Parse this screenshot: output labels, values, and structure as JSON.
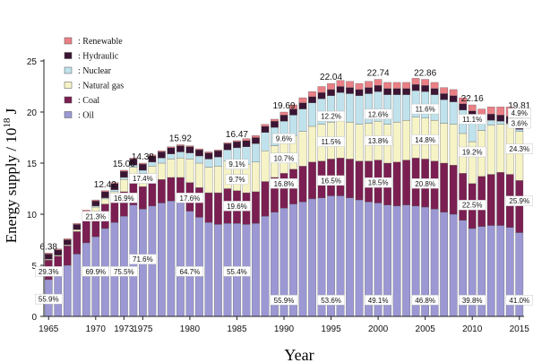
{
  "chart_data": {
    "type": "bar",
    "stacked": true,
    "xlabel": "Year",
    "ylabel": "Energy supply / 10",
    "ylabel_sup": "18",
    "ylabel_unit": " J",
    "ylim": [
      0,
      25
    ],
    "yticks": [
      0,
      5,
      10,
      15,
      20,
      25
    ],
    "xticks": [
      1965,
      1970,
      1973,
      1975,
      1980,
      1985,
      1990,
      1995,
      2000,
      2005,
      2010,
      2015
    ],
    "legend_position": "top-left",
    "series": [
      {
        "name": ": Oil",
        "color": "#9b98d4",
        "values": [
          3.6,
          4.0,
          5.0,
          6.1,
          7.2,
          7.8,
          8.6,
          9.2,
          9.8,
          10.9,
          10.5,
          10.8,
          11.1,
          11.3,
          11.2,
          10.3,
          9.7,
          9.2,
          9.0,
          9.1,
          9.1,
          9.0,
          9.1,
          9.8,
          10.2,
          10.6,
          11.0,
          11.2,
          11.5,
          11.6,
          11.8,
          11.8,
          11.6,
          11.4,
          11.2,
          11.1,
          10.9,
          10.8,
          10.9,
          10.8,
          10.7,
          10.5,
          10.2,
          10.0,
          9.4,
          8.6,
          8.8,
          8.9,
          8.9,
          8.7,
          8.2
        ]
      },
      {
        "name": ": Coal",
        "color": "#7b1f52",
        "values": [
          1.9,
          1.9,
          1.9,
          2.2,
          2.3,
          2.5,
          2.4,
          2.3,
          2.4,
          2.4,
          2.2,
          2.4,
          2.3,
          2.3,
          2.4,
          2.8,
          2.9,
          2.9,
          3.1,
          3.4,
          3.2,
          3.1,
          3.1,
          3.4,
          3.4,
          3.4,
          3.4,
          3.5,
          3.6,
          3.6,
          3.6,
          3.7,
          3.8,
          3.8,
          4.0,
          4.2,
          4.1,
          4.3,
          4.4,
          4.7,
          4.7,
          4.7,
          4.8,
          4.8,
          4.6,
          4.4,
          4.9,
          5.0,
          5.2,
          5.2,
          5.1
        ]
      },
      {
        "name": ": Natural gas",
        "color": "#f6f3c6",
        "values": [
          0.1,
          0.1,
          0.1,
          0.2,
          0.3,
          0.4,
          0.5,
          0.7,
          1.2,
          1.3,
          1.3,
          1.5,
          1.6,
          1.8,
          1.9,
          2.3,
          2.4,
          2.5,
          2.6,
          2.7,
          2.8,
          2.8,
          2.9,
          3.0,
          3.1,
          3.2,
          3.3,
          3.4,
          3.5,
          3.6,
          3.6,
          3.7,
          3.6,
          3.6,
          3.7,
          3.8,
          3.8,
          3.9,
          3.9,
          4.0,
          4.0,
          4.0,
          3.9,
          4.0,
          3.9,
          4.1,
          4.5,
          4.8,
          4.7,
          4.9,
          4.8
        ]
      },
      {
        "name": ": Nuclear",
        "color": "#bfe2ec",
        "values": [
          0.0,
          0.0,
          0.0,
          0.0,
          0.0,
          0.1,
          0.1,
          0.2,
          0.2,
          0.2,
          0.3,
          0.4,
          0.5,
          0.5,
          0.6,
          0.6,
          0.7,
          0.8,
          0.9,
          1.1,
          1.4,
          1.7,
          1.8,
          1.8,
          1.8,
          1.9,
          2.0,
          2.2,
          2.3,
          2.5,
          2.6,
          2.7,
          2.8,
          2.8,
          2.9,
          2.9,
          2.9,
          2.7,
          2.5,
          2.6,
          2.6,
          2.5,
          2.3,
          2.2,
          2.3,
          2.4,
          0.9,
          0.5,
          0.3,
          0.1,
          0.2
        ]
      },
      {
        "name": ": Hydraulic",
        "color": "#3b1533",
        "values": [
          0.5,
          0.5,
          0.5,
          0.5,
          0.5,
          0.5,
          0.6,
          0.6,
          0.6,
          0.6,
          0.6,
          0.6,
          0.6,
          0.6,
          0.6,
          0.6,
          0.6,
          0.6,
          0.6,
          0.6,
          0.6,
          0.6,
          0.6,
          0.6,
          0.6,
          0.6,
          0.6,
          0.6,
          0.6,
          0.6,
          0.6,
          0.6,
          0.6,
          0.6,
          0.6,
          0.6,
          0.6,
          0.6,
          0.6,
          0.6,
          0.6,
          0.6,
          0.6,
          0.6,
          0.6,
          0.6,
          0.6,
          0.6,
          0.6,
          0.7,
          0.7
        ]
      },
      {
        "name": ": Renewable",
        "color": "#ea7f86",
        "values": [
          0.1,
          0.1,
          0.1,
          0.1,
          0.1,
          0.1,
          0.1,
          0.1,
          0.1,
          0.1,
          0.1,
          0.1,
          0.1,
          0.1,
          0.1,
          0.1,
          0.1,
          0.1,
          0.1,
          0.1,
          0.1,
          0.2,
          0.2,
          0.2,
          0.2,
          0.3,
          0.4,
          0.5,
          0.5,
          0.6,
          0.6,
          0.6,
          0.6,
          0.6,
          0.6,
          0.6,
          0.6,
          0.6,
          0.6,
          0.6,
          0.6,
          0.6,
          0.6,
          0.6,
          0.6,
          0.6,
          0.6,
          0.7,
          0.8,
          0.9,
          1.0
        ]
      }
    ],
    "totals": [
      {
        "year": 1965,
        "label": "6.38"
      },
      {
        "year": 1971,
        "label": "12.42"
      },
      {
        "year": 1973,
        "label": "15.00"
      },
      {
        "year": 1975,
        "label": "14.38"
      },
      {
        "year": 1979,
        "label": "15.92"
      },
      {
        "year": 1985,
        "label": "16.47"
      },
      {
        "year": 1990,
        "label": "19.69"
      },
      {
        "year": 1995,
        "label": "22.04"
      },
      {
        "year": 2000,
        "label": "22.74"
      },
      {
        "year": 2005,
        "label": "22.86"
      },
      {
        "year": 2010,
        "label": "22.16"
      },
      {
        "year": 2015,
        "label": "19.81"
      }
    ],
    "annotations": [
      {
        "year": 1965,
        "y": 1.7,
        "text": "55.9%"
      },
      {
        "year": 1965,
        "y": 4.4,
        "text": "29.3%"
      },
      {
        "year": 1970,
        "y": 4.4,
        "text": "69.9%"
      },
      {
        "year": 1970,
        "y": 9.8,
        "text": "21.3%"
      },
      {
        "year": 1973,
        "y": 4.4,
        "text": "75.5%"
      },
      {
        "year": 1973,
        "y": 11.6,
        "text": "16.9%"
      },
      {
        "year": 1975,
        "y": 5.6,
        "text": "71.6%"
      },
      {
        "year": 1975,
        "y": 13.5,
        "text": "17.4%"
      },
      {
        "year": 1980,
        "y": 4.4,
        "text": "64.7%"
      },
      {
        "year": 1980,
        "y": 11.6,
        "text": "17.6%"
      },
      {
        "year": 1985,
        "y": 4.4,
        "text": "55.4%"
      },
      {
        "year": 1985,
        "y": 10.8,
        "text": "19.6%"
      },
      {
        "year": 1985,
        "y": 13.4,
        "text": "9.7%"
      },
      {
        "year": 1985,
        "y": 14.9,
        "text": "9.1%"
      },
      {
        "year": 1990,
        "y": 1.6,
        "text": "55.9%"
      },
      {
        "year": 1990,
        "y": 13.0,
        "text": "16.8%"
      },
      {
        "year": 1990,
        "y": 15.5,
        "text": "10.7%"
      },
      {
        "year": 1990,
        "y": 17.4,
        "text": "9.6%"
      },
      {
        "year": 1995,
        "y": 1.6,
        "text": "53.6%"
      },
      {
        "year": 1995,
        "y": 13.3,
        "text": "16.5%"
      },
      {
        "year": 1995,
        "y": 17.1,
        "text": "11.5%"
      },
      {
        "year": 1995,
        "y": 19.6,
        "text": "12.2%"
      },
      {
        "year": 2000,
        "y": 1.6,
        "text": "49.1%"
      },
      {
        "year": 2000,
        "y": 13.1,
        "text": "18.5%"
      },
      {
        "year": 2000,
        "y": 17.2,
        "text": "13.8%"
      },
      {
        "year": 2000,
        "y": 19.8,
        "text": "12.6%"
      },
      {
        "year": 2005,
        "y": 1.6,
        "text": "46.8%"
      },
      {
        "year": 2005,
        "y": 13.0,
        "text": "20.8%"
      },
      {
        "year": 2005,
        "y": 17.3,
        "text": "14.8%"
      },
      {
        "year": 2005,
        "y": 20.3,
        "text": "11.6%"
      },
      {
        "year": 2010,
        "y": 1.6,
        "text": "39.8%"
      },
      {
        "year": 2010,
        "y": 10.9,
        "text": "22.5%"
      },
      {
        "year": 2010,
        "y": 16.1,
        "text": "19.2%"
      },
      {
        "year": 2010,
        "y": 19.3,
        "text": "11.1%"
      },
      {
        "year": 2015,
        "y": 1.6,
        "text": "41.0%"
      },
      {
        "year": 2015,
        "y": 11.3,
        "text": "25.9%"
      },
      {
        "year": 2015,
        "y": 16.4,
        "text": "24.3%"
      },
      {
        "year": 2015,
        "y": 18.9,
        "text": "3.6%"
      },
      {
        "year": 2015,
        "y": 19.9,
        "text": "4.9%"
      }
    ]
  }
}
